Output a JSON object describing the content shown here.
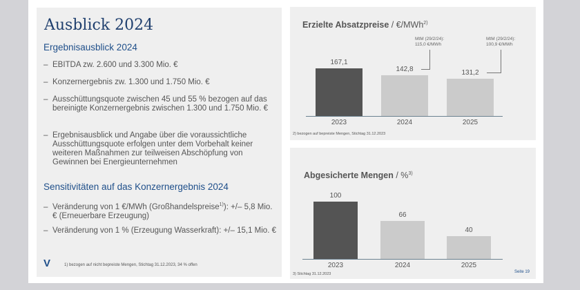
{
  "left": {
    "title": "Ausblick 2024",
    "section1": "Ergebnisausblick 2024",
    "bullets1": [
      "EBITDA zw. 2.600 und 3.300 Mio. €",
      "Konzernergebnis zw. 1.300 und 1.750 Mio. €",
      "Ausschüttungsquote zwischen 45 und 55 % bezogen auf das bereinigte Konzernergebnis zwischen 1.300 und 1.750 Mio. €",
      "Ergebnisausblick und Angabe über die voraussichtliche Ausschüttungsquote erfolgen unter dem Vorbehalt keiner weiteren Maßnahmen zur teilweisen Abschöpfung von Gewinnen bei Energieunternehmen"
    ],
    "section2": "Sensitivitäten auf das Konzernergebnis 2024",
    "bullet2a_pre": "Veränderung von 1 €/MWh (Großhandelspreise",
    "bullet2a_sup": "1)",
    "bullet2a_post": "): +/– 5,8 Mio. € (Erneuerbare Erzeugung)",
    "bullet2b": "Veränderung von 1 % (Erzeugung Wasserkraft): +/– 15,1 Mio. €",
    "logo": "V",
    "footnote": "1) bezogen auf nicht bepreiste Mengen, Stichtag 31.12.2023, 34 % offen",
    "dash": "–"
  },
  "page": "Seite 19",
  "colors": {
    "dark_bar": "#545454",
    "light_bar": "#cbcbcb",
    "accent": "#1f3f6e"
  },
  "chart_data": [
    {
      "type": "bar",
      "title": "Erzielte Absatzpreise",
      "unit": " / €/MWh",
      "title_sup": "2)",
      "categories": [
        "2023",
        "2024",
        "2025"
      ],
      "values": [
        167.1,
        142.8,
        131.2
      ],
      "labels": [
        "167,1",
        "142,8",
        "131,2"
      ],
      "annotations": [
        {
          "category": "2024",
          "lines": [
            "MtM (29/2/24):",
            "115,0 €/MWh"
          ]
        },
        {
          "category": "2025",
          "lines": [
            "MtM (29/2/24):",
            "100,9 €/MWh"
          ]
        }
      ],
      "footnote": "2) bezogen auf bepreiste Mengen, Stichtag 31.12.2023"
    },
    {
      "type": "bar",
      "title": "Abgesicherte Mengen",
      "unit": " / %",
      "title_sup": "3)",
      "categories": [
        "2023",
        "2024",
        "2025"
      ],
      "values": [
        100,
        66,
        40
      ],
      "labels": [
        "100",
        "66",
        "40"
      ],
      "footnote": "3) Stichtag 31.12.2023"
    }
  ]
}
